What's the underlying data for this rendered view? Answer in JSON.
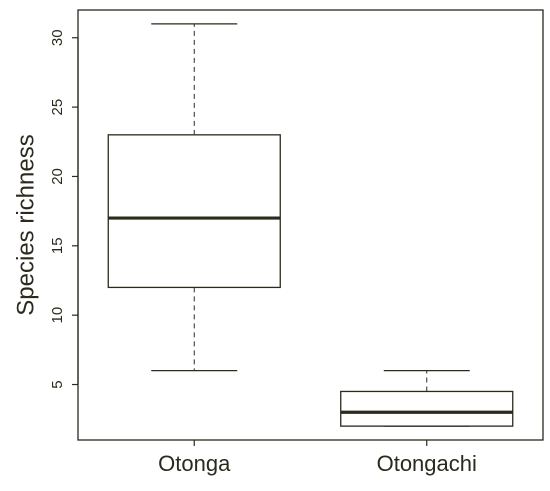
{
  "chart_data": {
    "type": "boxplot",
    "title": "",
    "xlabel": "",
    "ylabel": "Species richness",
    "categories": [
      "Otonga",
      "Otongachi"
    ],
    "boxes": [
      {
        "category": "Otonga",
        "whisker_low": 6,
        "q1": 12,
        "median": 17,
        "q3": 23,
        "whisker_high": 31
      },
      {
        "category": "Otongachi",
        "whisker_low": 2,
        "q1": 2,
        "median": 3,
        "q3": 4.5,
        "whisker_high": 6
      }
    ],
    "ylim": [
      1,
      32
    ],
    "yticks": [
      5,
      10,
      15,
      20,
      25,
      30
    ],
    "grid": false,
    "legend": "none",
    "colors": {
      "ink": "#2b2a1c",
      "box_fill": "#ffffff"
    }
  }
}
